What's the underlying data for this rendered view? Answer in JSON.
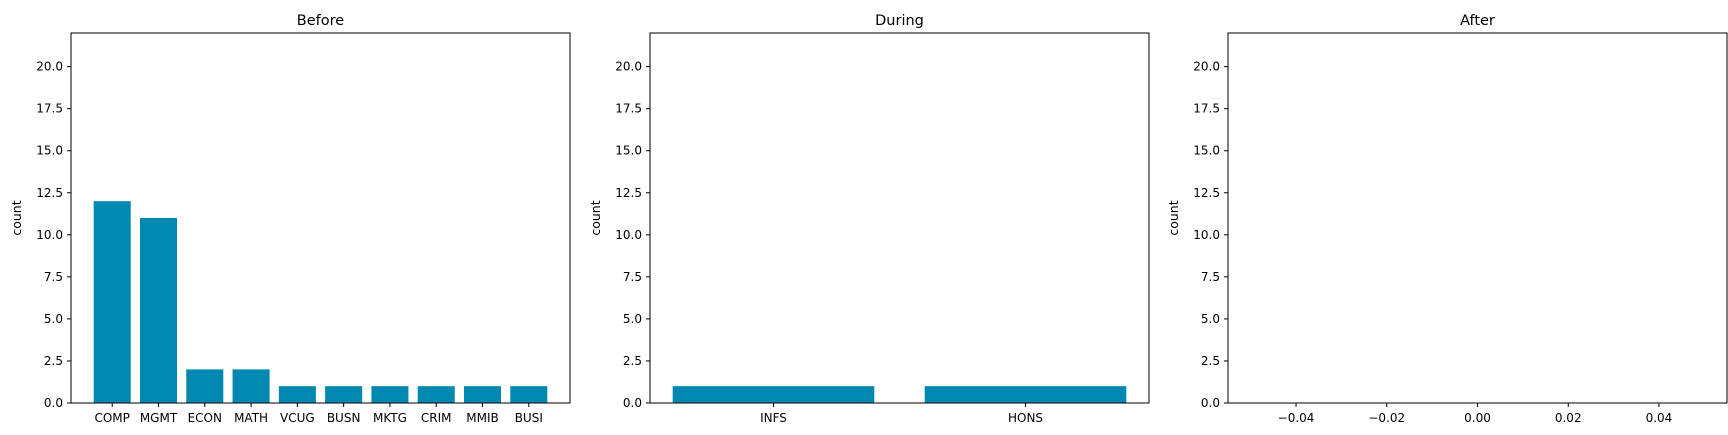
{
  "chart_data": [
    {
      "type": "bar",
      "title": "Before",
      "ylabel": "count",
      "xlabel": "",
      "categories": [
        "COMP",
        "MGMT",
        "ECON",
        "MATH",
        "VCUG",
        "BUSN",
        "MKTG",
        "CRIM",
        "MMIB",
        "BUSI"
      ],
      "values": [
        12,
        11,
        2,
        2,
        1,
        1,
        1,
        1,
        1,
        1
      ],
      "ylim": [
        0,
        22
      ],
      "yticks": [
        "0.0",
        "2.5",
        "5.0",
        "7.5",
        "10.0",
        "12.5",
        "15.0",
        "17.5",
        "20.0"
      ],
      "color": "#0088b0",
      "grid": false
    },
    {
      "type": "bar",
      "title": "During",
      "ylabel": "count",
      "xlabel": "",
      "categories": [
        "INFS",
        "HONS"
      ],
      "values": [
        1,
        1
      ],
      "ylim": [
        0,
        22
      ],
      "yticks": [
        "0.0",
        "2.5",
        "5.0",
        "7.5",
        "10.0",
        "12.5",
        "15.0",
        "17.5",
        "20.0"
      ],
      "color": "#0088b0",
      "grid": false
    },
    {
      "type": "bar",
      "title": "After",
      "ylabel": "count",
      "xlabel": "",
      "categories": [],
      "values": [],
      "ylim": [
        0,
        22
      ],
      "xlim": [
        -0.055,
        0.055
      ],
      "yticks": [
        "0.0",
        "2.5",
        "5.0",
        "7.5",
        "10.0",
        "12.5",
        "15.0",
        "17.5",
        "20.0"
      ],
      "xticks": [
        "−0.04",
        "−0.02",
        "0.00",
        "0.02",
        "0.04"
      ],
      "color": "#0088b0",
      "grid": false
    }
  ]
}
